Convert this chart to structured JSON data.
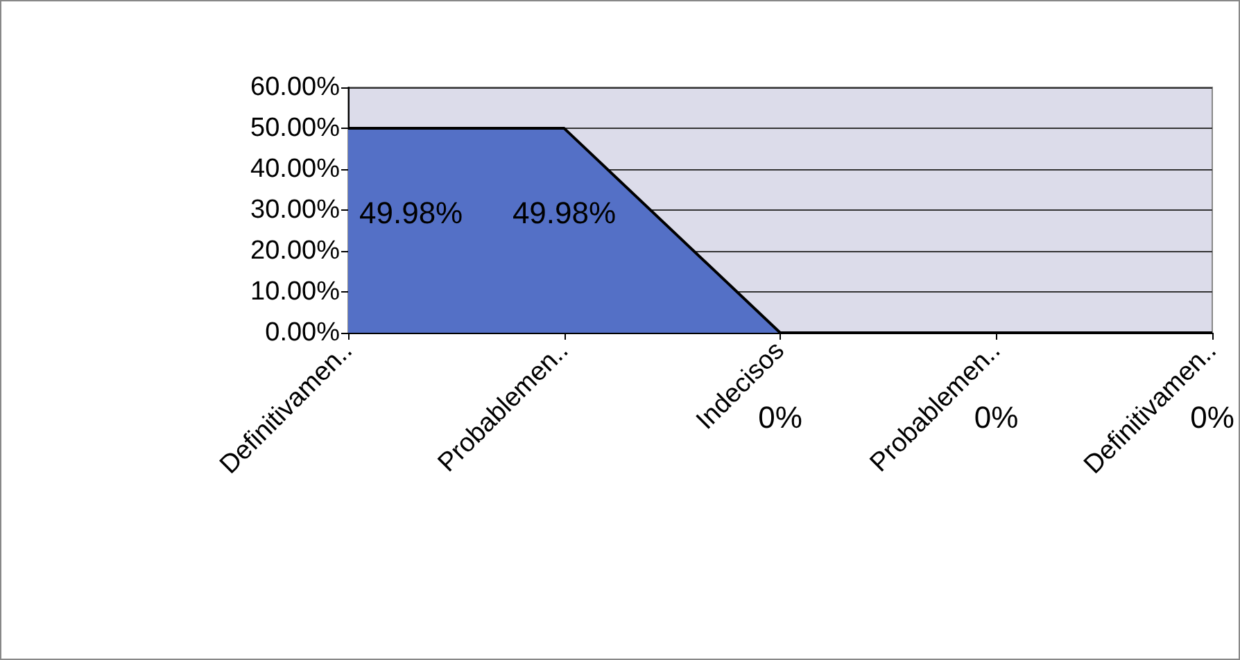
{
  "chart_data": {
    "type": "area",
    "categories": [
      "Definitivamen..",
      "Probablemen..",
      "Indecisos",
      "Probablemen..",
      "Definitivamen.."
    ],
    "series": [
      {
        "color": "#5470c6",
        "values": [
          49.98,
          49.98,
          0,
          0,
          0
        ],
        "value_labels": [
          "49.98%",
          "49.98%",
          "0%",
          "0%",
          "0%"
        ]
      }
    ],
    "ylim": [
      0,
      60
    ],
    "yticks": [
      {
        "value": 0,
        "label": "0.00%"
      },
      {
        "value": 10,
        "label": "10.00%"
      },
      {
        "value": 20,
        "label": "20.00%"
      },
      {
        "value": 30,
        "label": "30.00%"
      },
      {
        "value": 40,
        "label": "40.00%"
      },
      {
        "value": 50,
        "label": "50.00%"
      },
      {
        "value": 60,
        "label": "60.00%"
      }
    ],
    "grid": "y",
    "marker": "none"
  }
}
